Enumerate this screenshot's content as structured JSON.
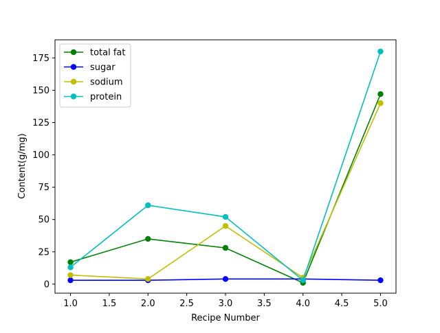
{
  "chart_data": {
    "type": "line",
    "title": "",
    "xlabel": "Recipe Number",
    "ylabel": "Content(g/mg)",
    "x": [
      1.0,
      2.0,
      3.0,
      4.0,
      5.0
    ],
    "xlim": [
      0.8,
      5.2
    ],
    "ylim": [
      -7,
      189
    ],
    "xticks": [
      1.0,
      1.5,
      2.0,
      2.5,
      3.0,
      3.5,
      4.0,
      4.5,
      5.0
    ],
    "xtick_labels": [
      "1.0",
      "1.5",
      "2.0",
      "2.5",
      "3.0",
      "3.5",
      "4.0",
      "4.5",
      "5.0"
    ],
    "yticks": [
      0,
      25,
      50,
      75,
      100,
      125,
      150,
      175
    ],
    "ytick_labels": [
      "0",
      "25",
      "50",
      "75",
      "100",
      "125",
      "150",
      "175"
    ],
    "grid": false,
    "legend_position": "top-left",
    "series": [
      {
        "name": "total fat",
        "color": "#008000",
        "values": [
          17,
          35,
          28,
          1,
          147
        ]
      },
      {
        "name": "sugar",
        "color": "#0000ff",
        "values": [
          3,
          3,
          4,
          4,
          3
        ]
      },
      {
        "name": "sodium",
        "color": "#bfbf00",
        "values": [
          7,
          4,
          45,
          5,
          140
        ]
      },
      {
        "name": "protein",
        "color": "#00bfbf",
        "values": [
          13,
          61,
          52,
          3,
          180
        ]
      }
    ]
  }
}
